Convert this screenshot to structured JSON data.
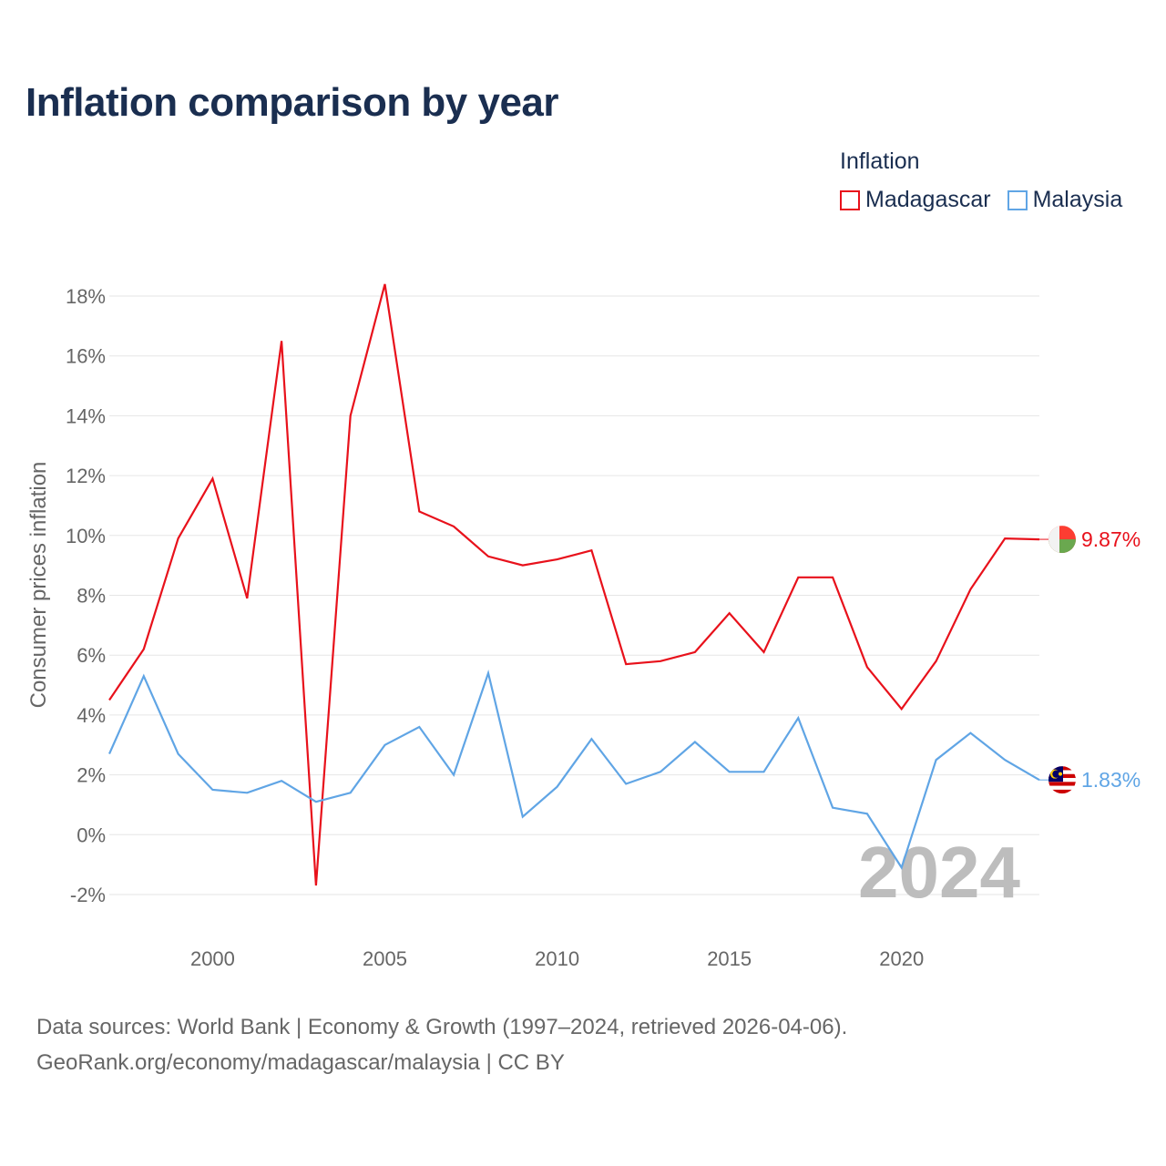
{
  "title": "Inflation comparison by year",
  "legend": {
    "title": "Inflation",
    "items": [
      {
        "label": "Madagascar",
        "color": "#e8111b"
      },
      {
        "label": "Malaysia",
        "color": "#60a5e5"
      }
    ]
  },
  "footer": {
    "line1": "Data sources: World Bank | Economy & Growth (1997–2024, retrieved 2026-04-06).",
    "line2": "GeoRank.org/economy/madagascar/malaysia | CC BY"
  },
  "chart_data": {
    "type": "line",
    "title": "Inflation comparison by year",
    "xlabel": "",
    "ylabel": "Consumer prices inflation",
    "xlim": [
      1997,
      2024
    ],
    "ylim": [
      -2,
      18
    ],
    "yticks": [
      -2,
      0,
      2,
      4,
      6,
      8,
      10,
      12,
      14,
      16,
      18
    ],
    "ytick_labels": [
      "-2%",
      "0%",
      "2%",
      "4%",
      "6%",
      "8%",
      "10%",
      "12%",
      "14%",
      "16%",
      "18%"
    ],
    "xticks": [
      2000,
      2005,
      2010,
      2015,
      2020
    ],
    "xtick_labels": [
      "2000",
      "2005",
      "2010",
      "2015",
      "2020"
    ],
    "grid": true,
    "current_year_label": "2024",
    "x": [
      1997,
      1998,
      1999,
      2000,
      2001,
      2002,
      2003,
      2004,
      2005,
      2006,
      2007,
      2008,
      2009,
      2010,
      2011,
      2012,
      2013,
      2014,
      2015,
      2016,
      2017,
      2018,
      2019,
      2020,
      2021,
      2022,
      2023,
      2024
    ],
    "series": [
      {
        "name": "Madagascar",
        "color": "#e8111b",
        "end_label": "9.87%",
        "icon": "madagascar-flag-icon",
        "values": [
          4.5,
          6.2,
          9.9,
          11.9,
          7.9,
          16.5,
          -1.7,
          14.0,
          18.4,
          10.8,
          10.3,
          9.3,
          9.0,
          9.2,
          9.5,
          5.7,
          5.8,
          6.1,
          7.4,
          6.1,
          8.6,
          8.6,
          5.6,
          4.2,
          5.8,
          8.2,
          9.9,
          9.87
        ]
      },
      {
        "name": "Malaysia",
        "color": "#60a5e5",
        "end_label": "1.83%",
        "icon": "malaysia-flag-icon",
        "values": [
          2.7,
          5.3,
          2.7,
          1.5,
          1.4,
          1.8,
          1.1,
          1.4,
          3.0,
          3.6,
          2.0,
          5.4,
          0.6,
          1.6,
          3.2,
          1.7,
          2.1,
          3.1,
          2.1,
          2.1,
          3.9,
          0.9,
          0.7,
          -1.1,
          2.5,
          3.4,
          2.5,
          1.83
        ]
      }
    ]
  }
}
